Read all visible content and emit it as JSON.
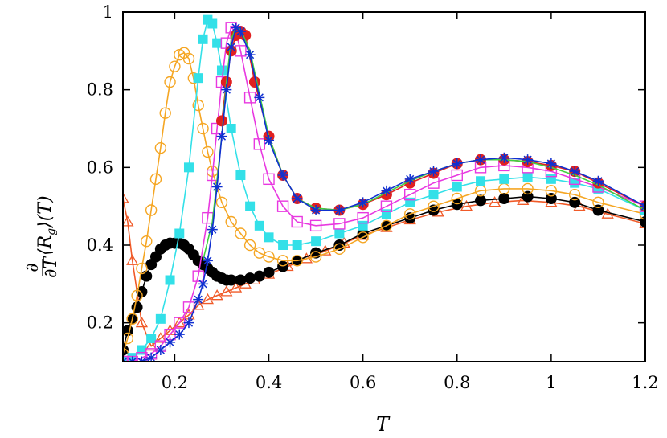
{
  "chart_data": {
    "type": "line",
    "xlabel": "T",
    "ylabel": "∂/∂T ⟨R_g⟩(T)",
    "ylabel_parts": {
      "num": "∂",
      "den": "∂T",
      "body": "⟨R",
      "sub": "g",
      "tail": "⟩(T)"
    },
    "xlim": [
      0.09,
      1.2
    ],
    "ylim": [
      0.1,
      1.0
    ],
    "x_ticks": [
      0.2,
      0.4,
      0.6,
      0.8,
      1,
      1.2
    ],
    "x_tick_labels": [
      "0.2",
      "0.4",
      "0.6",
      "0.8",
      "1",
      "1.2"
    ],
    "y_ticks": [
      0.2,
      0.4,
      0.6,
      0.8,
      1
    ],
    "y_tick_labels": [
      "0.2",
      "0.4",
      "0.6",
      "0.8",
      "1"
    ],
    "grid": false,
    "legend": "none",
    "series": [
      {
        "marker": "open-triangle",
        "color": "#f05a28",
        "x": [
          0.09,
          0.1,
          0.11,
          0.13,
          0.15,
          0.17,
          0.19,
          0.21,
          0.23,
          0.25,
          0.27,
          0.29,
          0.31,
          0.33,
          0.35,
          0.37,
          0.4,
          0.44,
          0.48,
          0.52,
          0.56,
          0.6,
          0.65,
          0.7,
          0.76,
          0.82,
          0.88,
          0.94,
          1.0,
          1.06,
          1.12,
          1.2
        ],
        "y": [
          0.52,
          0.46,
          0.36,
          0.2,
          0.14,
          0.16,
          0.18,
          0.2,
          0.22,
          0.245,
          0.26,
          0.27,
          0.28,
          0.29,
          0.3,
          0.31,
          0.325,
          0.345,
          0.365,
          0.385,
          0.405,
          0.425,
          0.445,
          0.465,
          0.485,
          0.5,
          0.51,
          0.515,
          0.51,
          0.5,
          0.48,
          0.455
        ]
      },
      {
        "marker": "filled-circle",
        "color": "#000000",
        "x": [
          0.09,
          0.1,
          0.11,
          0.12,
          0.13,
          0.14,
          0.15,
          0.16,
          0.17,
          0.18,
          0.19,
          0.2,
          0.21,
          0.22,
          0.23,
          0.24,
          0.25,
          0.26,
          0.27,
          0.28,
          0.29,
          0.3,
          0.31,
          0.32,
          0.34,
          0.36,
          0.38,
          0.4,
          0.43,
          0.46,
          0.5,
          0.55,
          0.6,
          0.65,
          0.7,
          0.75,
          0.8,
          0.85,
          0.9,
          0.95,
          1.0,
          1.05,
          1.1,
          1.2
        ],
        "y": [
          0.13,
          0.18,
          0.21,
          0.24,
          0.28,
          0.32,
          0.35,
          0.37,
          0.39,
          0.4,
          0.405,
          0.405,
          0.405,
          0.4,
          0.39,
          0.375,
          0.36,
          0.35,
          0.34,
          0.33,
          0.32,
          0.315,
          0.31,
          0.31,
          0.31,
          0.315,
          0.32,
          0.33,
          0.345,
          0.36,
          0.38,
          0.4,
          0.43,
          0.45,
          0.47,
          0.49,
          0.505,
          0.515,
          0.52,
          0.525,
          0.52,
          0.51,
          0.49,
          0.46
        ]
      },
      {
        "marker": "open-circle",
        "color": "#f5a623",
        "x": [
          0.09,
          0.1,
          0.11,
          0.12,
          0.13,
          0.14,
          0.15,
          0.16,
          0.17,
          0.18,
          0.19,
          0.2,
          0.21,
          0.22,
          0.23,
          0.24,
          0.25,
          0.26,
          0.27,
          0.28,
          0.3,
          0.32,
          0.34,
          0.36,
          0.38,
          0.4,
          0.43,
          0.46,
          0.5,
          0.55,
          0.6,
          0.65,
          0.7,
          0.75,
          0.8,
          0.85,
          0.9,
          0.95,
          1.0,
          1.05,
          1.1,
          1.2
        ],
        "y": [
          0.12,
          0.16,
          0.21,
          0.27,
          0.34,
          0.41,
          0.49,
          0.57,
          0.65,
          0.74,
          0.82,
          0.86,
          0.89,
          0.895,
          0.88,
          0.83,
          0.76,
          0.7,
          0.64,
          0.59,
          0.51,
          0.46,
          0.43,
          0.4,
          0.38,
          0.37,
          0.36,
          0.36,
          0.37,
          0.39,
          0.42,
          0.45,
          0.48,
          0.5,
          0.52,
          0.54,
          0.545,
          0.545,
          0.54,
          0.53,
          0.51,
          0.48
        ]
      },
      {
        "marker": "filled-square",
        "color": "#33e0e8",
        "x": [
          0.09,
          0.11,
          0.13,
          0.15,
          0.17,
          0.19,
          0.21,
          0.23,
          0.25,
          0.26,
          0.27,
          0.28,
          0.29,
          0.3,
          0.32,
          0.34,
          0.36,
          0.38,
          0.4,
          0.43,
          0.46,
          0.5,
          0.55,
          0.6,
          0.65,
          0.7,
          0.75,
          0.8,
          0.85,
          0.9,
          0.95,
          1.0,
          1.05,
          1.1,
          1.2
        ],
        "y": [
          0.1,
          0.11,
          0.13,
          0.16,
          0.21,
          0.31,
          0.43,
          0.6,
          0.83,
          0.93,
          0.98,
          0.97,
          0.92,
          0.85,
          0.7,
          0.58,
          0.5,
          0.45,
          0.42,
          0.4,
          0.4,
          0.41,
          0.43,
          0.45,
          0.48,
          0.51,
          0.53,
          0.55,
          0.565,
          0.57,
          0.575,
          0.57,
          0.56,
          0.545,
          0.49
        ]
      },
      {
        "marker": "open-square",
        "color": "#e838e0",
        "x": [
          0.09,
          0.11,
          0.13,
          0.15,
          0.17,
          0.19,
          0.21,
          0.23,
          0.25,
          0.27,
          0.28,
          0.29,
          0.3,
          0.31,
          0.32,
          0.33,
          0.34,
          0.36,
          0.38,
          0.4,
          0.43,
          0.46,
          0.5,
          0.55,
          0.6,
          0.65,
          0.7,
          0.75,
          0.8,
          0.85,
          0.9,
          0.95,
          1.0,
          1.05,
          1.1,
          1.2
        ],
        "y": [
          0.1,
          0.1,
          0.11,
          0.12,
          0.14,
          0.17,
          0.2,
          0.24,
          0.32,
          0.47,
          0.58,
          0.7,
          0.82,
          0.92,
          0.96,
          0.95,
          0.9,
          0.78,
          0.66,
          0.57,
          0.5,
          0.46,
          0.45,
          0.455,
          0.47,
          0.5,
          0.53,
          0.56,
          0.58,
          0.6,
          0.605,
          0.6,
          0.59,
          0.57,
          0.55,
          0.5
        ]
      },
      {
        "marker": "filled-circle",
        "color": "#e02020",
        "x": [
          0.3,
          0.31,
          0.32,
          0.33,
          0.34,
          0.35,
          0.37,
          0.4,
          0.43,
          0.46,
          0.5,
          0.55,
          0.6,
          0.65,
          0.7,
          0.75,
          0.8,
          0.85,
          0.9,
          0.95,
          1.0,
          1.05,
          1.1,
          1.2
        ],
        "y": [
          0.72,
          0.82,
          0.9,
          0.94,
          0.95,
          0.94,
          0.82,
          0.68,
          0.58,
          0.52,
          0.495,
          0.49,
          0.505,
          0.53,
          0.56,
          0.585,
          0.61,
          0.62,
          0.62,
          0.615,
          0.605,
          0.59,
          0.56,
          0.5
        ]
      },
      {
        "marker": "none",
        "color": "#40d040",
        "x": [
          0.26,
          0.28,
          0.3,
          0.31,
          0.32,
          0.33,
          0.34,
          0.36,
          0.38,
          0.4,
          0.43,
          0.46,
          0.5,
          0.55,
          0.6,
          0.65,
          0.7,
          0.75,
          0.8,
          0.85,
          0.9,
          0.95,
          1.0,
          1.05,
          1.1,
          1.2
        ],
        "y": [
          0.36,
          0.46,
          0.68,
          0.82,
          0.93,
          0.96,
          0.955,
          0.9,
          0.79,
          0.68,
          0.58,
          0.52,
          0.495,
          0.49,
          0.505,
          0.535,
          0.565,
          0.59,
          0.61,
          0.62,
          0.62,
          0.615,
          0.6,
          0.58,
          0.555,
          0.49
        ]
      },
      {
        "marker": "star",
        "color": "#1030d0",
        "x": [
          0.09,
          0.11,
          0.13,
          0.15,
          0.17,
          0.19,
          0.21,
          0.23,
          0.25,
          0.26,
          0.27,
          0.28,
          0.29,
          0.3,
          0.31,
          0.32,
          0.33,
          0.34,
          0.36,
          0.38,
          0.4,
          0.43,
          0.46,
          0.5,
          0.55,
          0.6,
          0.65,
          0.7,
          0.75,
          0.8,
          0.85,
          0.9,
          0.95,
          1.0,
          1.05,
          1.1,
          1.2
        ],
        "y": [
          0.1,
          0.1,
          0.1,
          0.11,
          0.13,
          0.15,
          0.17,
          0.2,
          0.26,
          0.3,
          0.36,
          0.44,
          0.55,
          0.68,
          0.8,
          0.91,
          0.96,
          0.95,
          0.89,
          0.78,
          0.67,
          0.58,
          0.52,
          0.49,
          0.49,
          0.51,
          0.54,
          0.57,
          0.59,
          0.61,
          0.62,
          0.625,
          0.62,
          0.61,
          0.59,
          0.565,
          0.5
        ]
      }
    ]
  }
}
